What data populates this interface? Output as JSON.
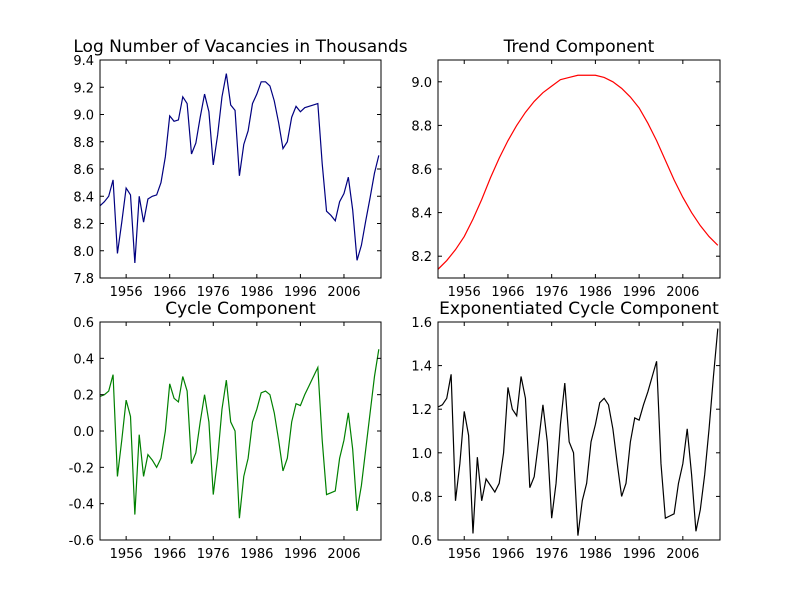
{
  "chart_data": [
    {
      "type": "line",
      "title": "Log Number of Vacancies in Thousands",
      "x": [
        1950,
        1951,
        1952,
        1953,
        1954,
        1955,
        1956,
        1957,
        1958,
        1959,
        1960,
        1961,
        1962,
        1963,
        1964,
        1965,
        1966,
        1967,
        1968,
        1969,
        1970,
        1971,
        1972,
        1973,
        1974,
        1975,
        1976,
        1977,
        1978,
        1979,
        1980,
        1981,
        1982,
        1983,
        1984,
        1985,
        1986,
        1987,
        1988,
        1989,
        1990,
        1991,
        1992,
        1993,
        1994,
        1995,
        1996,
        1997,
        1998,
        1999,
        2000,
        2001,
        2002,
        2003,
        2004,
        2005,
        2006,
        2007,
        2008,
        2009,
        2010,
        2011,
        2012,
        2013,
        2014
      ],
      "series": [
        {
          "color": "#000080",
          "values": [
            8.33,
            8.36,
            8.4,
            8.52,
            7.98,
            8.21,
            8.46,
            8.41,
            7.91,
            8.4,
            8.21,
            8.38,
            8.4,
            8.41,
            8.5,
            8.69,
            8.99,
            8.95,
            8.96,
            9.13,
            9.08,
            8.71,
            8.79,
            8.98,
            9.15,
            9.02,
            8.63,
            8.85,
            9.13,
            9.3,
            9.07,
            9.03,
            8.55,
            8.78,
            8.88,
            9.08,
            9.15,
            9.24,
            9.24,
            9.21,
            9.1,
            8.94,
            8.75,
            8.8,
            8.98,
            9.06,
            9.02,
            9.05,
            9.06,
            9.07,
            9.08,
            8.64,
            8.29,
            8.26,
            8.22,
            8.36,
            8.42,
            8.54,
            8.3,
            7.93,
            8.04,
            8.22,
            8.39,
            8.57,
            8.7
          ]
        }
      ],
      "xlim": [
        1950,
        2014.5
      ],
      "xticks": [
        1956,
        1966,
        1976,
        1986,
        1996,
        2006
      ],
      "ylim": [
        7.8,
        9.4
      ],
      "yticks": [
        7.8,
        {
          "value": 8,
          "label": "8.0"
        },
        8.2,
        8.4,
        8.6,
        8.8,
        {
          "value": 9,
          "label": "9.0"
        },
        9.2,
        9.4
      ]
    },
    {
      "type": "line",
      "title": "Trend Component",
      "x": [
        1950,
        1952,
        1954,
        1956,
        1958,
        1960,
        1962,
        1964,
        1966,
        1968,
        1970,
        1972,
        1974,
        1976,
        1978,
        1980,
        1982,
        1984,
        1986,
        1988,
        1990,
        1992,
        1994,
        1996,
        1998,
        2000,
        2002,
        2004,
        2006,
        2008,
        2010,
        2012,
        2014
      ],
      "series": [
        {
          "color": "#ff0000",
          "values": [
            8.14,
            8.18,
            8.23,
            8.29,
            8.37,
            8.46,
            8.56,
            8.65,
            8.73,
            8.8,
            8.86,
            8.91,
            8.95,
            8.98,
            9.01,
            9.02,
            9.03,
            9.03,
            9.03,
            9.02,
            9.0,
            8.97,
            8.93,
            8.88,
            8.81,
            8.73,
            8.64,
            8.55,
            8.47,
            8.4,
            8.34,
            8.29,
            8.25
          ]
        }
      ],
      "xlim": [
        1950,
        2014.5
      ],
      "xticks": [
        1956,
        1966,
        1976,
        1986,
        1996,
        2006
      ],
      "ylim": [
        8.1,
        9.1
      ],
      "yticks": [
        8.2,
        8.4,
        8.6,
        8.8,
        {
          "value": 9,
          "label": "9.0"
        }
      ]
    },
    {
      "type": "line",
      "title": "Cycle Component",
      "x": [
        1950,
        1951,
        1952,
        1953,
        1954,
        1955,
        1956,
        1957,
        1958,
        1959,
        1960,
        1961,
        1962,
        1963,
        1964,
        1965,
        1966,
        1967,
        1968,
        1969,
        1970,
        1971,
        1972,
        1973,
        1974,
        1975,
        1976,
        1977,
        1978,
        1979,
        1980,
        1981,
        1982,
        1983,
        1984,
        1985,
        1986,
        1987,
        1988,
        1989,
        1990,
        1991,
        1992,
        1993,
        1994,
        1995,
        1996,
        1997,
        1998,
        1999,
        2000,
        2001,
        2002,
        2003,
        2004,
        2005,
        2006,
        2007,
        2008,
        2009,
        2010,
        2011,
        2012,
        2013,
        2014
      ],
      "series": [
        {
          "color": "#008000",
          "values": [
            0.19,
            0.2,
            0.22,
            0.31,
            -0.25,
            -0.05,
            0.17,
            0.08,
            -0.46,
            -0.02,
            -0.25,
            -0.13,
            -0.16,
            -0.2,
            -0.15,
            0.0,
            0.26,
            0.18,
            0.16,
            0.3,
            0.22,
            -0.18,
            -0.12,
            0.05,
            0.2,
            0.05,
            -0.35,
            -0.15,
            0.12,
            0.28,
            0.05,
            0.0,
            -0.48,
            -0.25,
            -0.15,
            0.05,
            0.12,
            0.21,
            0.22,
            0.2,
            0.1,
            -0.05,
            -0.22,
            -0.15,
            0.05,
            0.15,
            0.14,
            0.2,
            0.25,
            0.3,
            0.35,
            -0.05,
            -0.35,
            -0.34,
            -0.33,
            -0.15,
            -0.05,
            0.1,
            -0.1,
            -0.44,
            -0.3,
            -0.1,
            0.1,
            0.3,
            0.45
          ]
        }
      ],
      "xlim": [
        1950,
        2014.5
      ],
      "xticks": [
        1956,
        1966,
        1976,
        1986,
        1996,
        2006
      ],
      "ylim": [
        -0.6,
        0.6
      ],
      "yticks": [
        -0.6,
        -0.4,
        -0.2,
        {
          "value": 0,
          "label": "0.0"
        },
        0.2,
        0.4,
        0.6
      ]
    },
    {
      "type": "line",
      "title": "Exponentiated Cycle Component",
      "x": [
        1950,
        1951,
        1952,
        1953,
        1954,
        1955,
        1956,
        1957,
        1958,
        1959,
        1960,
        1961,
        1962,
        1963,
        1964,
        1965,
        1966,
        1967,
        1968,
        1969,
        1970,
        1971,
        1972,
        1973,
        1974,
        1975,
        1976,
        1977,
        1978,
        1979,
        1980,
        1981,
        1982,
        1983,
        1984,
        1985,
        1986,
        1987,
        1988,
        1989,
        1990,
        1991,
        1992,
        1993,
        1994,
        1995,
        1996,
        1997,
        1998,
        1999,
        2000,
        2001,
        2002,
        2003,
        2004,
        2005,
        2006,
        2007,
        2008,
        2009,
        2010,
        2011,
        2012,
        2013,
        2014
      ],
      "series": [
        {
          "color": "#000000",
          "values": [
            1.21,
            1.22,
            1.25,
            1.36,
            0.78,
            0.95,
            1.19,
            1.08,
            0.63,
            0.98,
            0.78,
            0.88,
            0.85,
            0.82,
            0.86,
            1.0,
            1.3,
            1.2,
            1.17,
            1.35,
            1.25,
            0.84,
            0.89,
            1.05,
            1.22,
            1.05,
            0.7,
            0.86,
            1.13,
            1.32,
            1.05,
            1.0,
            0.62,
            0.78,
            0.86,
            1.05,
            1.13,
            1.23,
            1.25,
            1.22,
            1.11,
            0.95,
            0.8,
            0.86,
            1.05,
            1.16,
            1.15,
            1.22,
            1.28,
            1.35,
            1.42,
            0.95,
            0.7,
            0.71,
            0.72,
            0.86,
            0.95,
            1.11,
            0.9,
            0.64,
            0.74,
            0.9,
            1.11,
            1.35,
            1.57
          ]
        }
      ],
      "xlim": [
        1950,
        2014.5
      ],
      "xticks": [
        1956,
        1966,
        1976,
        1986,
        1996,
        2006
      ],
      "ylim": [
        0.6,
        1.6
      ],
      "yticks": [
        0.6,
        0.8,
        {
          "value": 1,
          "label": "1.0"
        },
        1.2,
        1.4,
        1.6
      ]
    }
  ]
}
